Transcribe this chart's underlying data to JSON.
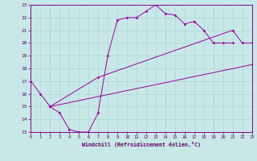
{
  "xlabel": "Windchill (Refroidissement éolien,°C)",
  "xlim": [
    0,
    23
  ],
  "ylim": [
    13,
    23
  ],
  "xticks": [
    0,
    1,
    2,
    3,
    4,
    5,
    6,
    7,
    8,
    9,
    10,
    11,
    12,
    13,
    14,
    15,
    16,
    17,
    18,
    19,
    20,
    21,
    22,
    23
  ],
  "yticks": [
    13,
    14,
    15,
    16,
    17,
    18,
    19,
    20,
    21,
    22,
    23
  ],
  "bg_color": "#c8e8e8",
  "line_color": "#990099",
  "grid_color": "#aad4d4",
  "line1_x": [
    0,
    1,
    2,
    3,
    4,
    5,
    6,
    7,
    8,
    9,
    10,
    11,
    12,
    13,
    14,
    15,
    16,
    17,
    18,
    19,
    20,
    21
  ],
  "line1_y": [
    17.0,
    16.0,
    15.0,
    14.5,
    13.2,
    13.0,
    13.0,
    14.5,
    19.0,
    21.8,
    22.0,
    22.0,
    22.5,
    23.0,
    22.3,
    22.2,
    21.5,
    21.7,
    21.0,
    20.0,
    20.0,
    20.0
  ],
  "line2_x": [
    2,
    7,
    21,
    22,
    23
  ],
  "line2_y": [
    15.0,
    17.3,
    21.0,
    20.0,
    20.0
  ],
  "line3_x": [
    2,
    23
  ],
  "line3_y": [
    15.0,
    18.3
  ]
}
